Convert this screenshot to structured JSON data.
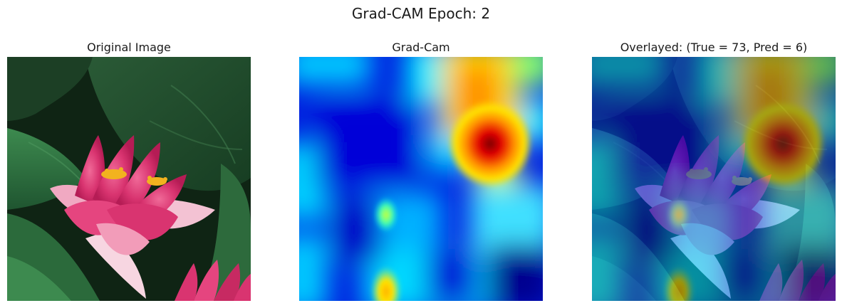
{
  "figure": {
    "suptitle": "Grad-CAM Epoch: 2"
  },
  "panels": [
    {
      "title": "Original Image",
      "content": "photo of pink water lily among green lily pads"
    },
    {
      "title": "Grad-Cam",
      "content": "jet colormap class activation heatmap"
    },
    {
      "title": "Overlayed: (True = 73, Pred = 6)",
      "content": "heatmap blended over photo"
    }
  ],
  "labels": {
    "true_class": 73,
    "pred_class": 6
  },
  "colors": {
    "heat_min": "#00008f",
    "heat_low": "#0040ff",
    "heat_mid": "#00e0ff",
    "heat_high": "#ffe000",
    "heat_peak": "#8b0000",
    "foliage_dark": "#0f2414",
    "foliage_light": "#3f8a4e",
    "petal_pink": "#e6457f",
    "petal_light": "#f7c8d6",
    "stamen_yellow": "#f2b21f"
  }
}
